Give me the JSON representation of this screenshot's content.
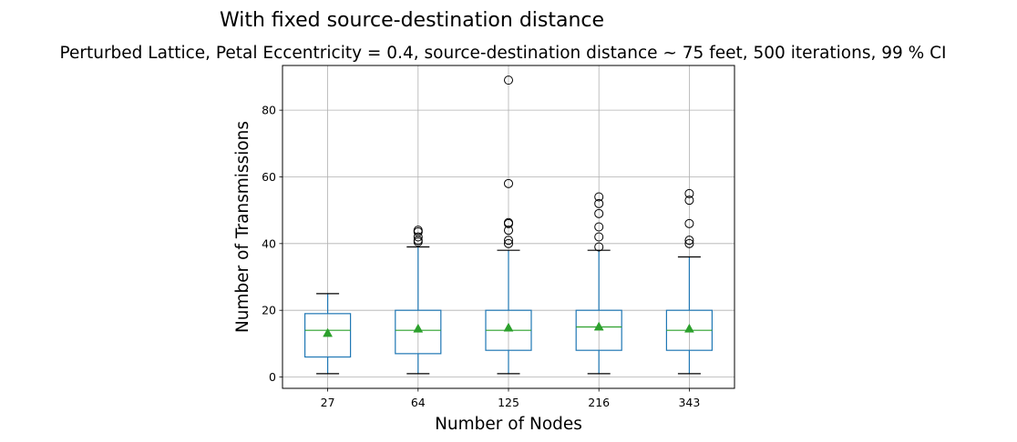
{
  "chart_data": {
    "type": "box",
    "suptitle": "With fixed source-destination distance",
    "title": "Perturbed Lattice, Petal Eccentricity = 0.4, source-destination distance ~ 75 feet, 500 iterations, 99 % CI",
    "xlabel": "Number of Nodes",
    "ylabel": "Number of Transmissions",
    "categories": [
      "27",
      "64",
      "125",
      "216",
      "343"
    ],
    "ylim": [
      -3.4,
      93.4
    ],
    "yticks": [
      0,
      20,
      40,
      60,
      80
    ],
    "grid": true,
    "colors": {
      "box": "#1f77b4",
      "median": "#2ca02c",
      "mean_marker": "#2ca02c",
      "whisker_cap": "#000000",
      "outlier": "#000000",
      "grid": "#b0b0b0"
    },
    "boxes": [
      {
        "category": "27",
        "whislo": 1,
        "q1": 6,
        "med": 14,
        "q3": 19,
        "whishi": 25,
        "mean": 13.2,
        "fliers": []
      },
      {
        "category": "64",
        "whislo": 1,
        "q1": 7,
        "med": 14,
        "q3": 20,
        "whishi": 39,
        "mean": 14.5,
        "fliers": [
          40.5,
          41,
          42,
          43.5,
          44
        ]
      },
      {
        "category": "125",
        "whislo": 1,
        "q1": 8,
        "med": 14,
        "q3": 20,
        "whishi": 38,
        "mean": 14.8,
        "fliers": [
          40,
          41,
          44,
          46,
          46.3,
          58,
          89
        ]
      },
      {
        "category": "216",
        "whislo": 1,
        "q1": 8,
        "med": 15,
        "q3": 20,
        "whishi": 38,
        "mean": 15.1,
        "fliers": [
          39,
          42,
          45,
          49,
          52,
          54
        ]
      },
      {
        "category": "343",
        "whislo": 1,
        "q1": 8,
        "med": 14,
        "q3": 20,
        "whishi": 36,
        "mean": 14.5,
        "fliers": [
          40,
          41,
          46,
          53,
          55
        ]
      }
    ]
  }
}
